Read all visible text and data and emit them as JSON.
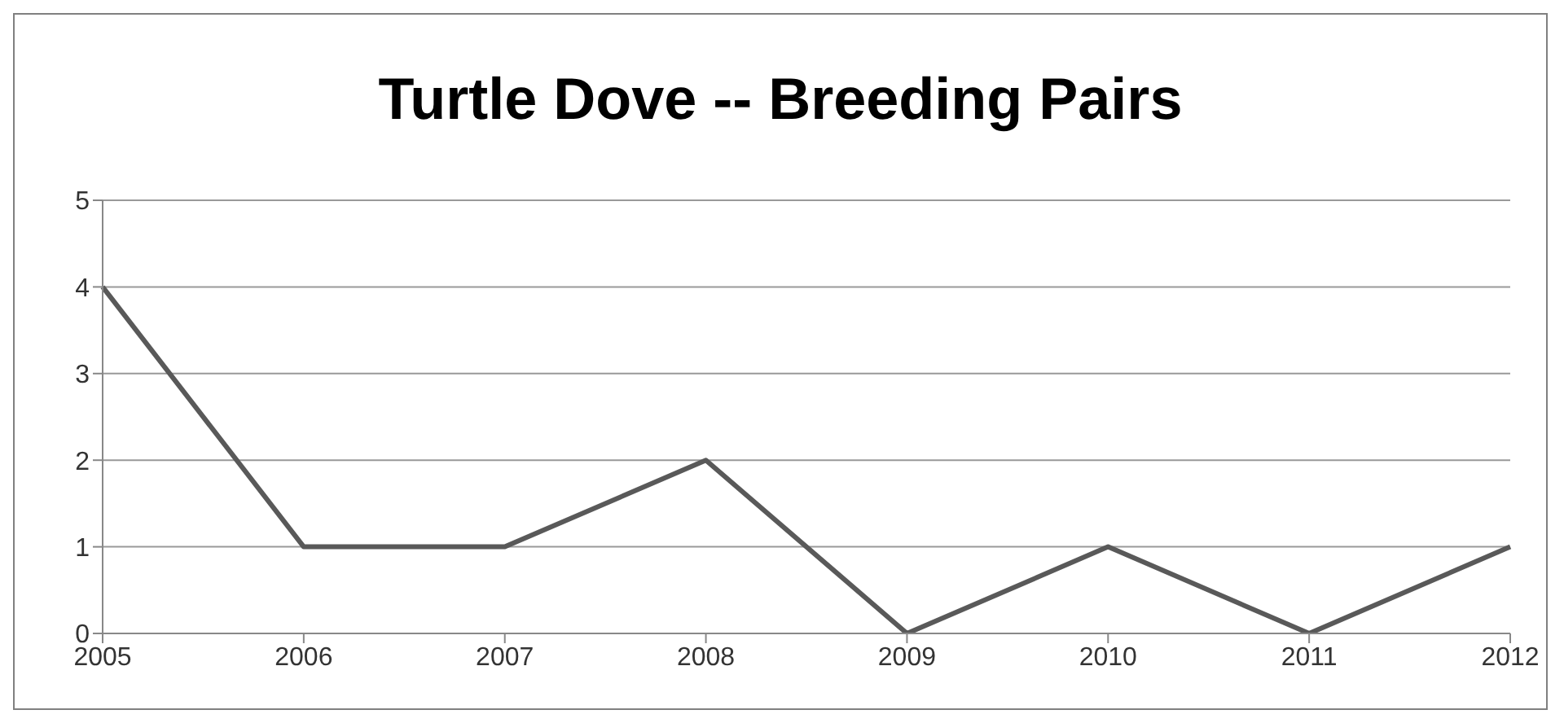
{
  "chart_data": {
    "type": "line",
    "title": "Turtle Dove -- Breeding Pairs",
    "categories": [
      "2005",
      "2006",
      "2007",
      "2008",
      "2009",
      "2010",
      "2011",
      "2012"
    ],
    "series": [
      {
        "color": "#595959",
        "values": [
          4,
          1,
          1,
          2,
          0,
          1,
          0,
          1
        ]
      }
    ],
    "ylim": [
      0,
      5
    ],
    "yticks": [
      0,
      1,
      2,
      3,
      4,
      5
    ],
    "grid": "y",
    "marker": "none",
    "line_style": "solid"
  }
}
